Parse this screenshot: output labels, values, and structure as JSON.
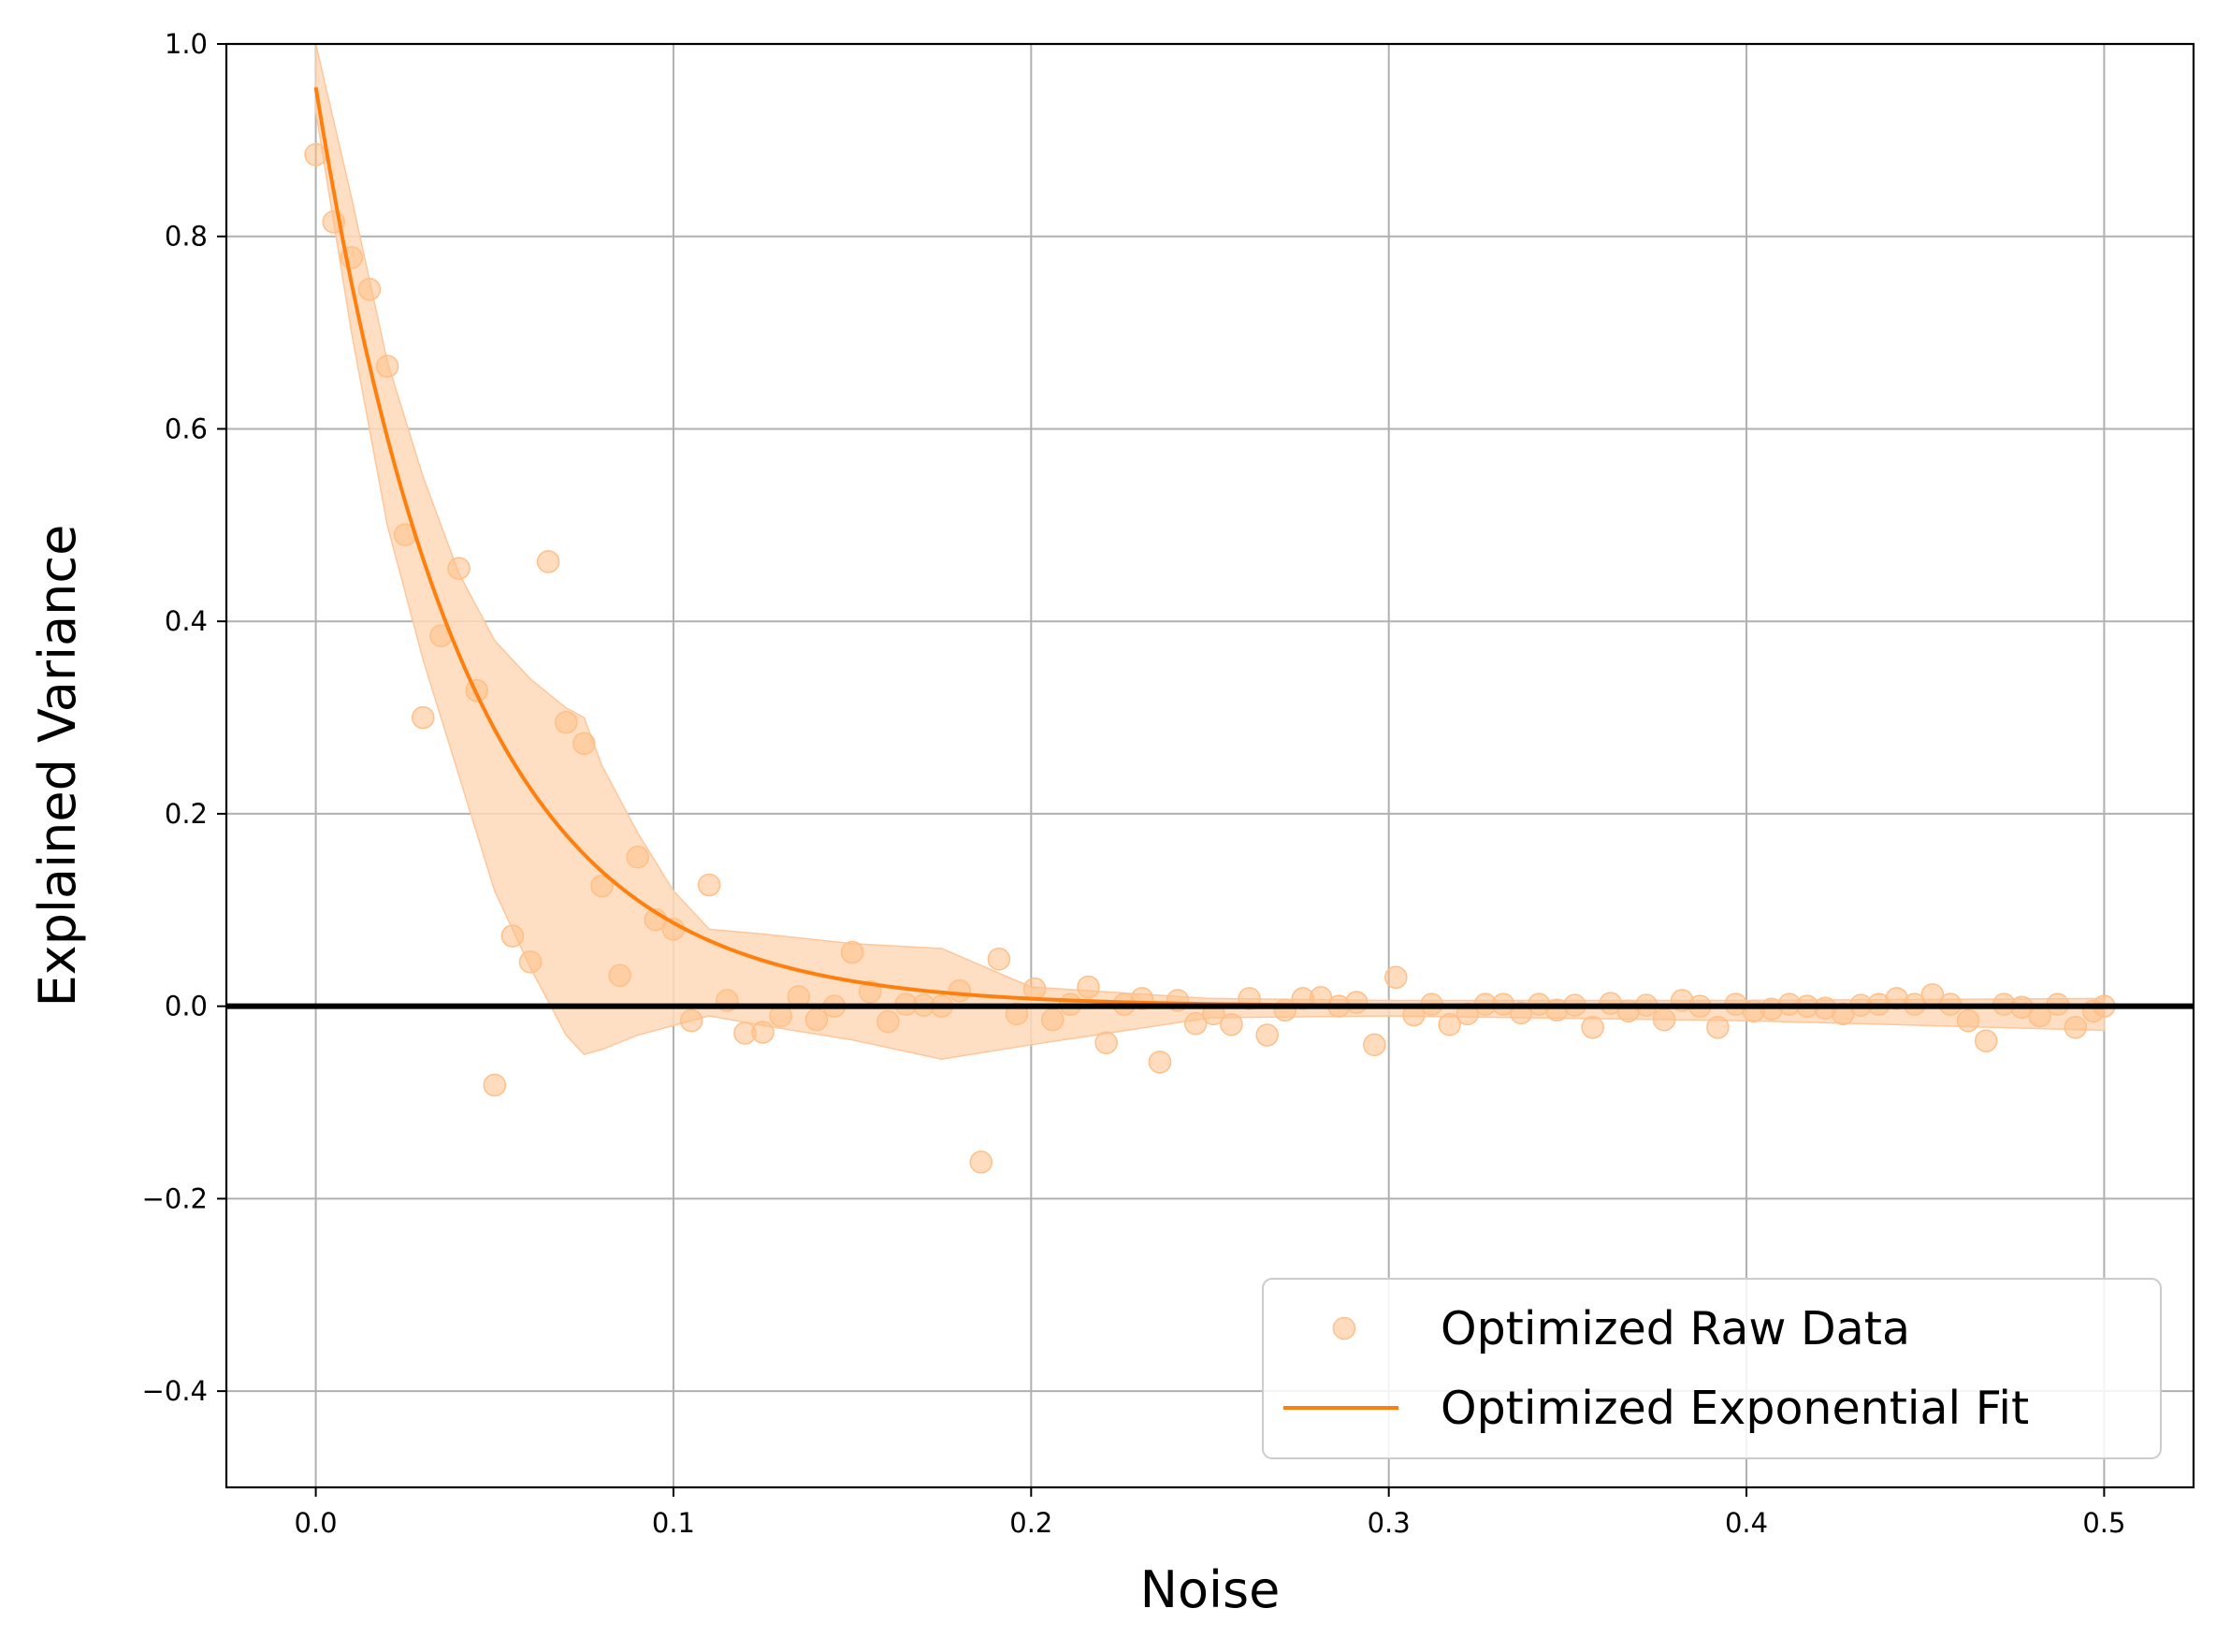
{
  "chart_data": {
    "type": "scatter",
    "xlabel": "Noise",
    "ylabel": "Explained Variance",
    "xlim": [
      -0.025,
      0.525
    ],
    "ylim": [
      -0.5,
      1.0
    ],
    "xticks": [
      0.0,
      0.1,
      0.2,
      0.3,
      0.4,
      0.5
    ],
    "yticks": [
      -0.4,
      -0.2,
      0.0,
      0.2,
      0.4,
      0.6,
      0.8,
      1.0
    ],
    "xtick_labels": [
      "0.0",
      "0.1",
      "0.2",
      "0.3",
      "0.4",
      "0.5"
    ],
    "ytick_labels": [
      "−0.4",
      "−0.2",
      "0.0",
      "0.2",
      "0.4",
      "0.6",
      "0.8",
      "1.0"
    ],
    "grid": true,
    "legend_position": "lower-right",
    "colors": {
      "fit": "#ff7f0e",
      "scatter": "#ffbf87",
      "band": "#ffd9b8",
      "zero_line": "#000000",
      "grid": "#b0b0b0"
    },
    "raw_data": {
      "name": "Optimized Raw Data",
      "x": [
        0.0,
        0.005,
        0.01,
        0.015,
        0.02,
        0.025,
        0.03,
        0.035,
        0.04,
        0.045,
        0.05,
        0.055,
        0.06,
        0.065,
        0.07,
        0.075,
        0.08,
        0.085,
        0.09,
        0.095,
        0.1,
        0.105,
        0.11,
        0.115,
        0.12,
        0.125,
        0.13,
        0.135,
        0.14,
        0.145,
        0.15,
        0.155,
        0.16,
        0.165,
        0.17,
        0.175,
        0.18,
        0.186,
        0.191,
        0.196,
        0.201,
        0.206,
        0.211,
        0.216,
        0.221,
        0.226,
        0.231,
        0.236,
        0.241,
        0.246,
        0.251,
        0.256,
        0.261,
        0.266,
        0.271,
        0.276,
        0.281,
        0.286,
        0.291,
        0.296,
        0.302,
        0.307,
        0.312,
        0.317,
        0.322,
        0.327,
        0.332,
        0.337,
        0.342,
        0.347,
        0.352,
        0.357,
        0.362,
        0.367,
        0.372,
        0.377,
        0.382,
        0.387,
        0.392,
        0.397,
        0.402,
        0.407,
        0.412,
        0.417,
        0.422,
        0.427,
        0.432,
        0.437,
        0.442,
        0.447,
        0.452,
        0.457,
        0.462,
        0.467,
        0.472,
        0.477,
        0.482,
        0.487,
        0.492,
        0.497,
        0.5
      ],
      "y": [
        0.885,
        0.815,
        0.778,
        0.745,
        0.665,
        0.49,
        0.3,
        0.385,
        0.455,
        0.328,
        -0.082,
        0.073,
        0.046,
        0.462,
        0.295,
        0.273,
        0.125,
        0.032,
        0.155,
        0.09,
        0.08,
        -0.015,
        0.126,
        0.006,
        -0.028,
        -0.027,
        -0.01,
        0.01,
        -0.014,
        0.0,
        0.056,
        0.015,
        -0.016,
        0.002,
        0.001,
        0.0,
        0.016,
        -0.162,
        0.049,
        -0.008,
        0.018,
        -0.014,
        0.002,
        0.02,
        -0.038,
        0.002,
        0.008,
        -0.058,
        0.006,
        -0.018,
        -0.008,
        -0.019,
        0.008,
        -0.03,
        -0.004,
        0.008,
        0.009,
        0.0,
        0.004,
        -0.04,
        0.03,
        -0.009,
        0.002,
        -0.019,
        -0.008,
        0.002,
        0.002,
        -0.007,
        0.002,
        -0.004,
        0.001,
        -0.022,
        0.003,
        -0.005,
        0.001,
        -0.014,
        0.006,
        0.0,
        -0.022,
        0.002,
        -0.005,
        -0.003,
        0.002,
        0.0,
        -0.002,
        -0.008,
        0.001,
        0.002,
        0.008,
        0.002,
        0.012,
        0.002,
        -0.015,
        -0.036,
        0.002,
        -0.001,
        -0.01,
        0.002,
        -0.022,
        -0.005,
        0.0
      ]
    },
    "fit": {
      "name": "Optimized Exponential Fit",
      "amplitude": 0.955,
      "decay_rate": 24.0,
      "x_range": [
        0.0,
        0.5
      ]
    },
    "band": {
      "x": [
        0.0,
        0.01,
        0.02,
        0.03,
        0.04,
        0.05,
        0.06,
        0.07,
        0.075,
        0.08,
        0.09,
        0.1,
        0.11,
        0.125,
        0.15,
        0.175,
        0.2,
        0.25,
        0.3,
        0.4,
        0.5
      ],
      "upper": [
        1.0,
        0.84,
        0.67,
        0.55,
        0.45,
        0.38,
        0.34,
        0.31,
        0.3,
        0.25,
        0.18,
        0.12,
        0.08,
        0.075,
        0.065,
        0.06,
        0.02,
        0.008,
        0.006,
        0.006,
        0.008
      ],
      "lower": [
        0.93,
        0.7,
        0.5,
        0.36,
        0.24,
        0.12,
        0.04,
        -0.03,
        -0.05,
        -0.045,
        -0.03,
        -0.02,
        -0.01,
        -0.02,
        -0.035,
        -0.055,
        -0.04,
        -0.012,
        -0.01,
        -0.015,
        -0.025
      ]
    }
  }
}
